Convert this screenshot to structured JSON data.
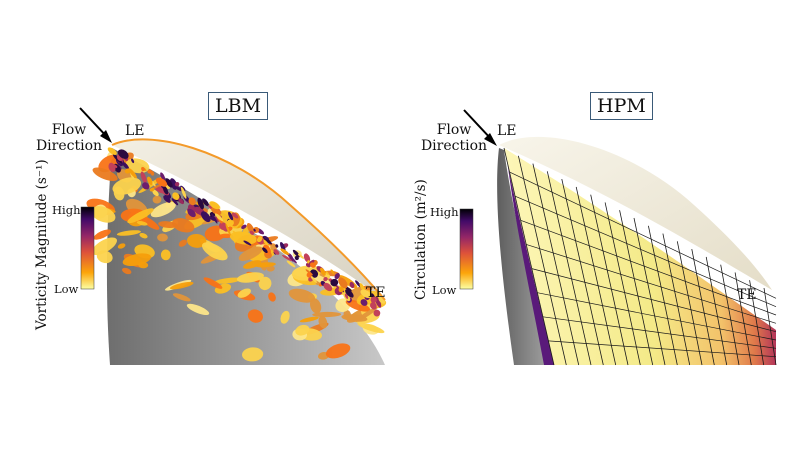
{
  "panels": [
    {
      "id": "lbm",
      "title": "LBM",
      "flow_label_line1": "Flow",
      "flow_label_line2": "Direction",
      "le_label": "LE",
      "te_label": "TE",
      "colorbar": {
        "title": "Vorticity Magnitude (s⁻¹)",
        "high": "High",
        "low": "Low",
        "colormap": [
          "#000004",
          "#420a68",
          "#932667",
          "#dd513a",
          "#fca50a",
          "#fcffa4"
        ]
      }
    },
    {
      "id": "hpm",
      "title": "HPM",
      "flow_label_line1": "Flow",
      "flow_label_line2": "Direction",
      "le_label": "LE",
      "te_label": "TE",
      "colorbar": {
        "title": "Circulation (m²/s)",
        "high": "High",
        "low": "Low",
        "colormap": [
          "#000004",
          "#420a68",
          "#932667",
          "#dd513a",
          "#fca50a",
          "#fcffa4"
        ]
      }
    }
  ]
}
